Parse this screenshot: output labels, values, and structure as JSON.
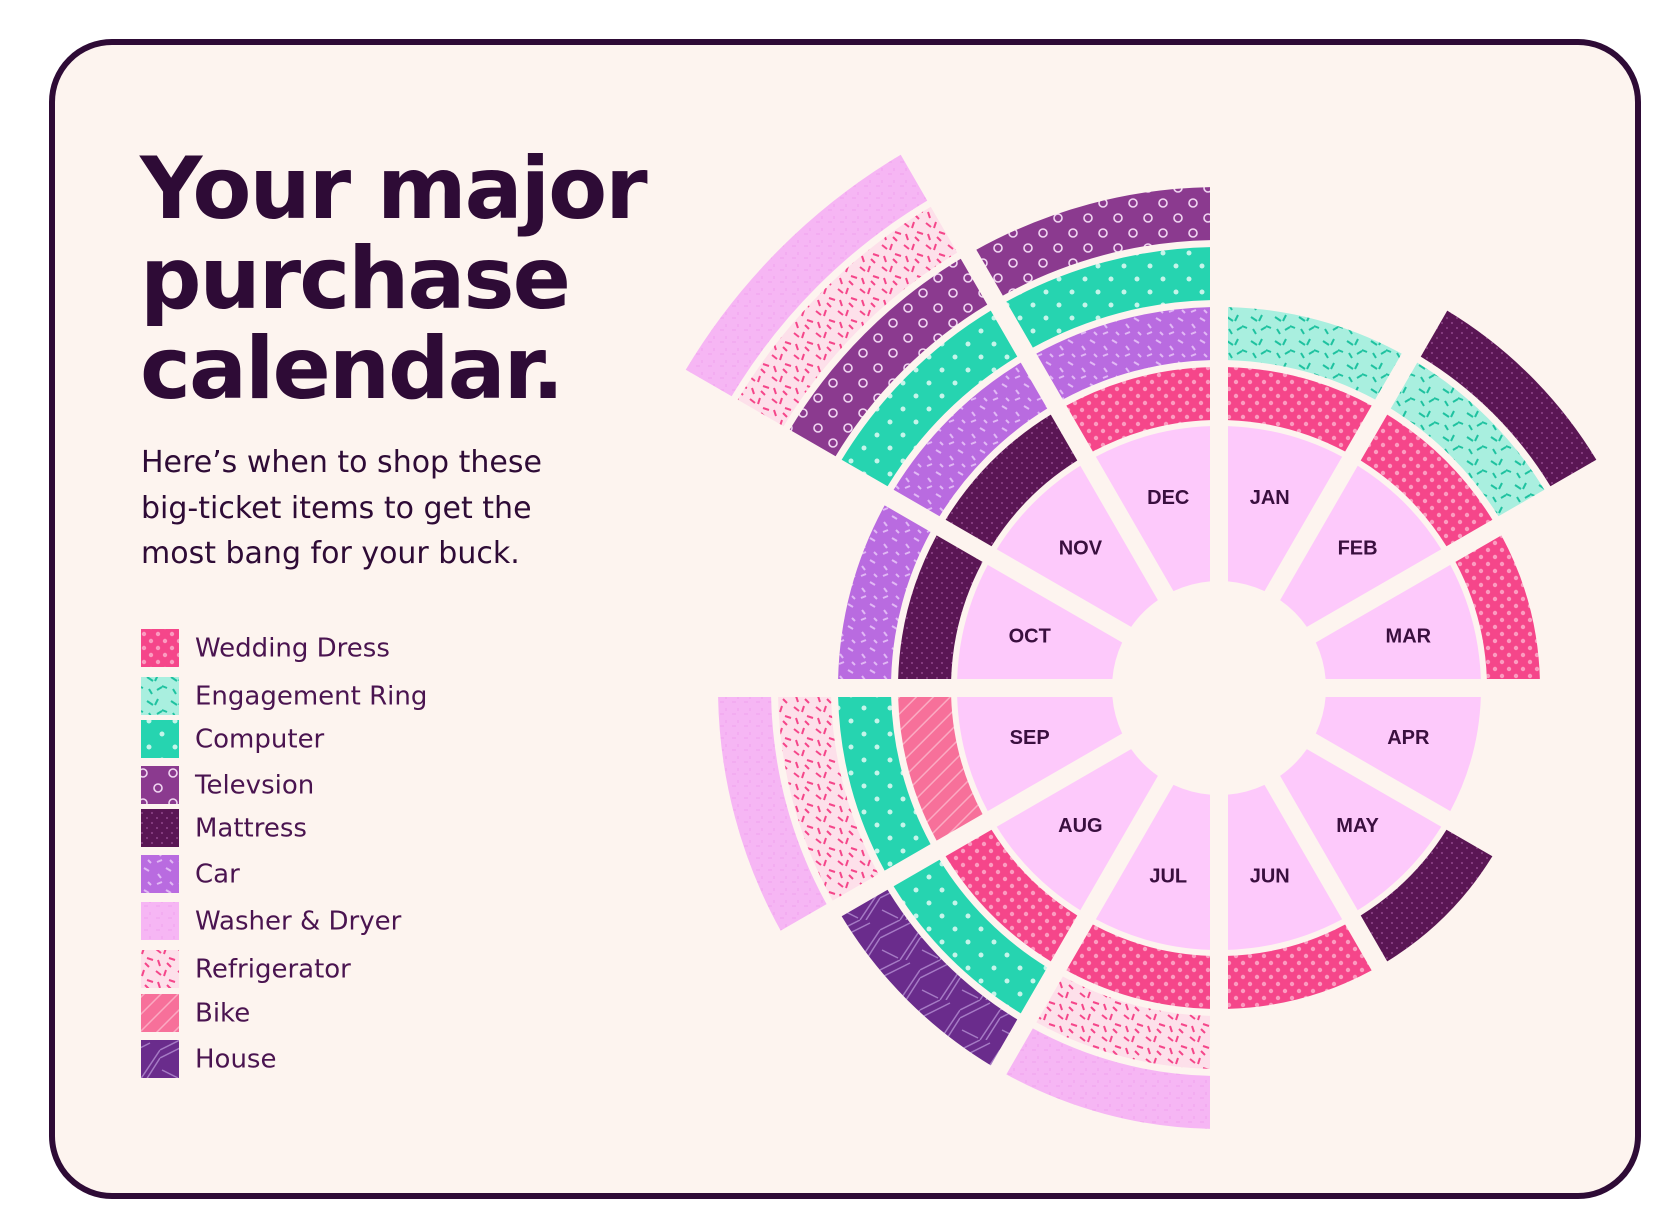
{
  "header": {
    "title": [
      "Your major",
      "purchase",
      "calendar."
    ],
    "subtitle": [
      "Here’s when to shop these",
      "big-ticket items to get the",
      "most bang for your buck."
    ]
  },
  "legend": [
    "Wedding Dress",
    "Engagement Ring",
    "Computer",
    "Televsion",
    "Mattress",
    "Car",
    "Washer & Dryer",
    "Refrigerator",
    "Bike",
    "House"
  ],
  "months": [
    {
      "label": "JAN",
      "rings": [
        "Wedding Dress",
        "Engagement Ring"
      ]
    },
    {
      "label": "FEB",
      "rings": [
        "Wedding Dress",
        "Engagement Ring",
        "Mattress"
      ]
    },
    {
      "label": "MAR",
      "rings": [
        "Wedding Dress"
      ]
    },
    {
      "label": "APR",
      "rings": []
    },
    {
      "label": "MAY",
      "rings": [
        "Mattress"
      ]
    },
    {
      "label": "JUN",
      "rings": [
        "Wedding Dress"
      ]
    },
    {
      "label": "JUL",
      "rings": [
        "Wedding Dress",
        "Refrigerator",
        "Washer & Dryer"
      ]
    },
    {
      "label": "AUG",
      "rings": [
        "Wedding Dress",
        "Computer",
        "House"
      ]
    },
    {
      "label": "SEP",
      "rings": [
        "Bike",
        "Computer",
        "Refrigerator",
        "Washer & Dryer"
      ]
    },
    {
      "label": "OCT",
      "rings": [
        "Mattress",
        "Car"
      ]
    },
    {
      "label": "NOV",
      "rings": [
        "Mattress",
        "Car",
        "Computer",
        "Televsion",
        "Refrigerator",
        "Washer & Dryer"
      ]
    },
    {
      "label": "DEC",
      "rings": [
        "Wedding Dress",
        "Car",
        "Computer",
        "Televsion"
      ]
    }
  ]
}
